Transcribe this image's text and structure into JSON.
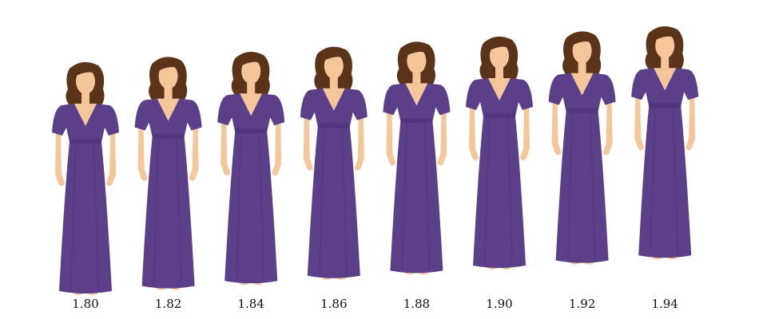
{
  "colors": {
    "dress": "#5b3f88",
    "dress_shade": "#4b3176",
    "skin": "#f5c69a",
    "hair": "#5b3318",
    "background": "#ffffff"
  },
  "figures": [
    {
      "label": "1.80"
    },
    {
      "label": "1.82"
    },
    {
      "label": "1.84"
    },
    {
      "label": "1.86"
    },
    {
      "label": "1.88"
    },
    {
      "label": "1.90"
    },
    {
      "label": "1.92"
    },
    {
      "label": "1.94"
    }
  ]
}
